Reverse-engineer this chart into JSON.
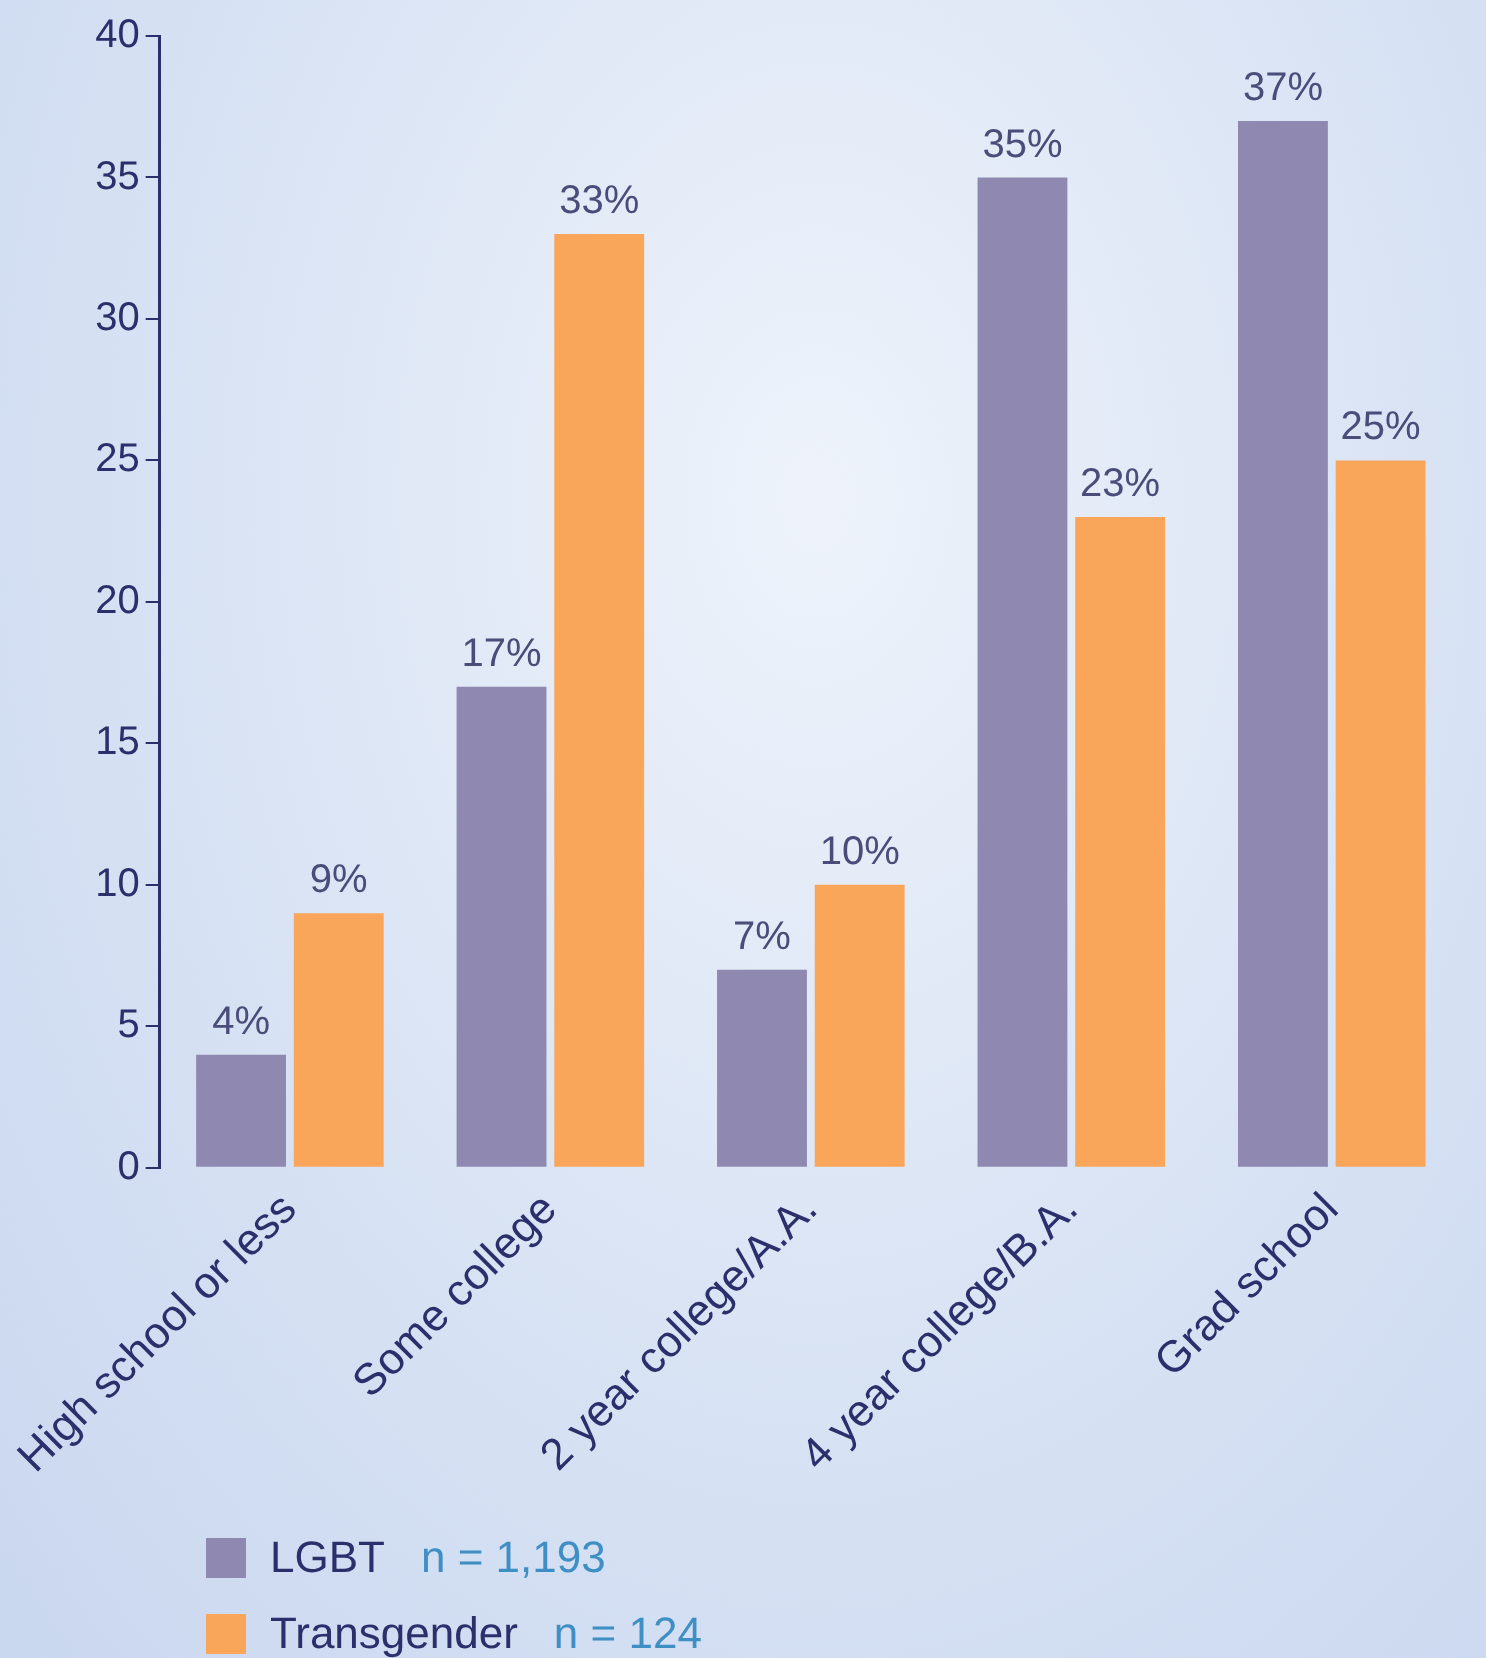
{
  "chart_data": {
    "type": "bar",
    "categories": [
      "High school or less",
      "Some college",
      "2 year college/A.A.",
      "4 year college/B.A.",
      "Grad school"
    ],
    "series": [
      {
        "name": "LGBT",
        "color": "#8f89b1",
        "values": [
          4,
          17,
          7,
          35,
          37
        ],
        "value_labels": [
          "4%",
          "17%",
          "7%",
          "35%",
          "37%"
        ]
      },
      {
        "name": "Transgender",
        "color": "#f9a55a",
        "values": [
          9,
          33,
          10,
          23,
          25
        ],
        "value_labels": [
          "9%",
          "33%",
          "10%",
          "23%",
          "25%"
        ]
      }
    ],
    "annotations": [
      "n = 1,193",
      "n = 124"
    ],
    "ylim": [
      0,
      40
    ],
    "yticks": [
      0,
      5,
      10,
      15,
      20,
      25,
      30,
      35,
      40
    ],
    "grid": false,
    "legend": "bottom left"
  }
}
